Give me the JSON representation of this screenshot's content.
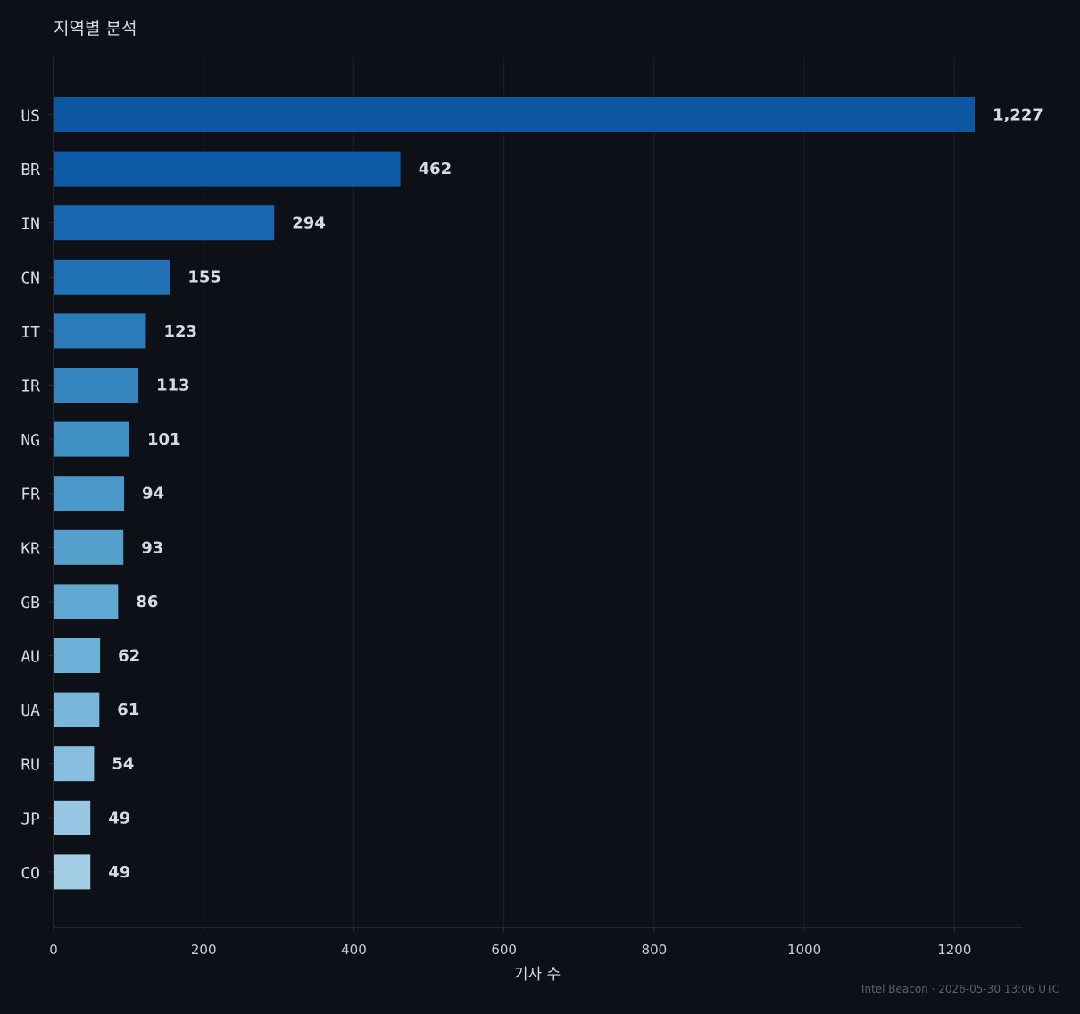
{
  "chart_data": {
    "type": "bar",
    "orientation": "horizontal",
    "title": "지역별 분석",
    "xlabel": "기사 수",
    "ylabel": "",
    "categories": [
      "US",
      "BR",
      "IN",
      "CN",
      "IT",
      "IR",
      "NG",
      "FR",
      "KR",
      "GB",
      "AU",
      "UA",
      "RU",
      "JP",
      "CO"
    ],
    "values": [
      1227,
      462,
      294,
      155,
      123,
      113,
      101,
      94,
      93,
      86,
      62,
      61,
      54,
      49,
      49
    ],
    "value_labels": [
      "1,227",
      "462",
      "294",
      "155",
      "123",
      "113",
      "101",
      "94",
      "93",
      "86",
      "62",
      "61",
      "54",
      "49",
      "49"
    ],
    "xlim": [
      0,
      1290
    ],
    "xticks": [
      0,
      200,
      400,
      600,
      800,
      1000,
      1200
    ],
    "grid": "vertical",
    "bar_colors": [
      "#0c56a2",
      "#0f5ba8",
      "#1967b0",
      "#2171b5",
      "#2b7bba",
      "#3585c0",
      "#3f8fc5",
      "#4a98c9",
      "#56a0ce",
      "#62a8d3",
      "#6db0d8",
      "#7ab7dc",
      "#88bfe0",
      "#96c6e2",
      "#a3cde4"
    ]
  },
  "footer": "Intel Beacon · 2026-05-30 13:06 UTC",
  "colors": {
    "background": "#0d1017",
    "grid": "#1c2027",
    "axis": "#2a2e36",
    "text": "#d6dbe3",
    "muted": "#5a606b"
  }
}
